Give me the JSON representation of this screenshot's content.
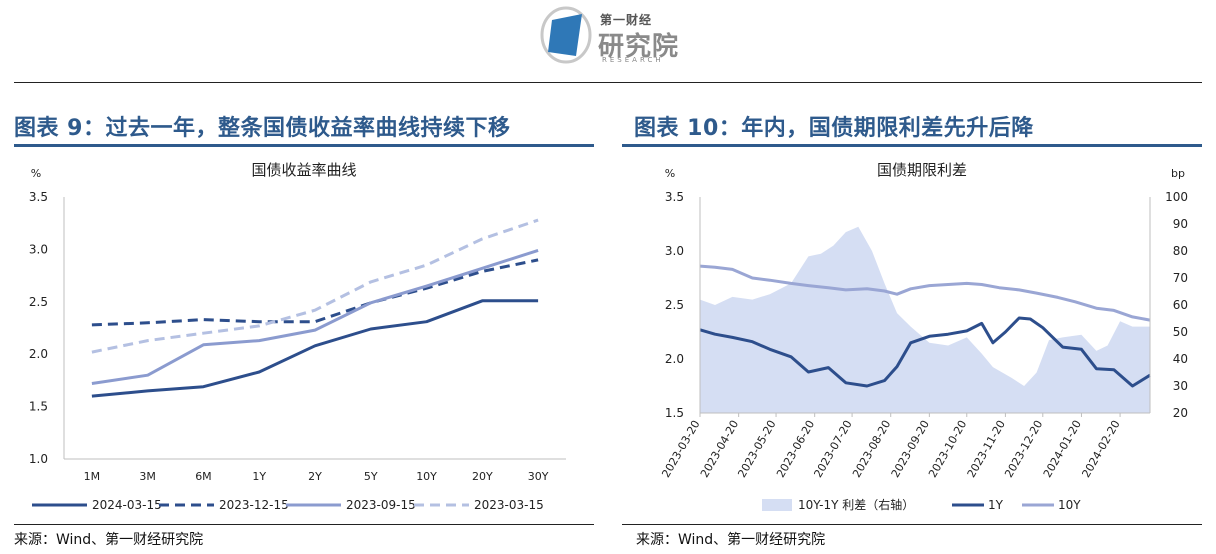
{
  "header": {
    "logo_small": "第一财经",
    "logo_big": "研究院",
    "logo_sub": "RESEARCH"
  },
  "figures": [
    {
      "title": "图表 9：过去一年，整条国债收益率曲线持续下移",
      "source": "来源：Wind、第一财经研究院"
    },
    {
      "title": "图表 10：年内，国债期限利差先升后降",
      "source": "来源：Wind、第一财经研究院"
    }
  ],
  "colors": {
    "accent": "#2e5a8c",
    "s1": "#2d4e8c",
    "s2": "#2d4e8c",
    "s3": "#8b9bcf",
    "s4": "#b4c0e2",
    "area": "#d5def3",
    "y10": "#9aa6d4"
  },
  "chart_data": [
    {
      "type": "line",
      "title": "国债收益率曲线",
      "ylabel": "%",
      "ylim": [
        1.0,
        3.5
      ],
      "yticks": [
        "1.0",
        "1.5",
        "2.0",
        "2.5",
        "3.0",
        "3.5"
      ],
      "categories": [
        "1M",
        "3M",
        "6M",
        "1Y",
        "2Y",
        "5Y",
        "10Y",
        "20Y",
        "30Y"
      ],
      "series": [
        {
          "name": "2024-03-15",
          "style": "solid",
          "values": [
            1.6,
            1.65,
            1.69,
            1.83,
            2.08,
            2.24,
            2.31,
            2.51,
            2.51
          ]
        },
        {
          "name": "2023-12-15",
          "style": "dashed",
          "values": [
            2.28,
            2.3,
            2.33,
            2.31,
            2.31,
            2.49,
            2.63,
            2.79,
            2.9
          ]
        },
        {
          "name": "2023-09-15",
          "style": "solid",
          "values": [
            1.72,
            1.8,
            2.09,
            2.13,
            2.23,
            2.49,
            2.65,
            2.82,
            2.99
          ]
        },
        {
          "name": "2023-03-15",
          "style": "dashed",
          "values": [
            2.02,
            2.13,
            2.2,
            2.27,
            2.42,
            2.69,
            2.85,
            3.1,
            3.28
          ]
        }
      ],
      "grid": false,
      "legend": "bottom"
    },
    {
      "type": "line",
      "title": "国债期限利差",
      "ylabel": "%",
      "ylabel_right": "bp",
      "ylim": [
        1.5,
        3.5
      ],
      "yticks": [
        "1.5",
        "2.0",
        "2.5",
        "3.0",
        "3.5"
      ],
      "ylim_right": [
        20,
        100
      ],
      "yticks_right": [
        "20",
        "30",
        "40",
        "50",
        "60",
        "70",
        "80",
        "90",
        "100"
      ],
      "x_start": "2023-03-20",
      "x_end": "2024-03-15",
      "x_ticks": [
        "2023-03-20",
        "2023-04-20",
        "2023-05-20",
        "2023-06-20",
        "2023-07-20",
        "2023-08-20",
        "2023-09-20",
        "2023-10-20",
        "2023-11-20",
        "2023-12-20",
        "2024-01-20",
        "2024-02-20"
      ],
      "series": [
        {
          "name": "10Y-1Y 利差（右轴）",
          "type": "area",
          "axis": "right",
          "x": [
            "2023-03-20",
            "2023-04-01",
            "2023-04-15",
            "2023-05-01",
            "2023-05-15",
            "2023-06-01",
            "2023-06-15",
            "2023-06-25",
            "2023-07-05",
            "2023-07-15",
            "2023-07-25",
            "2023-08-05",
            "2023-08-15",
            "2023-08-25",
            "2023-09-05",
            "2023-09-20",
            "2023-10-05",
            "2023-10-20",
            "2023-11-01",
            "2023-11-10",
            "2023-11-25",
            "2023-12-05",
            "2023-12-15",
            "2023-12-25",
            "2024-01-05",
            "2024-01-20",
            "2024-02-01",
            "2024-02-10",
            "2024-02-20",
            "2024-03-01",
            "2024-03-15"
          ],
          "values": [
            62,
            60,
            63,
            62,
            64,
            68,
            78,
            79,
            82,
            87,
            89,
            80,
            68,
            57,
            52,
            46,
            45,
            48,
            42,
            37,
            33,
            30,
            35,
            47,
            48,
            49,
            43,
            45,
            54,
            52,
            52
          ]
        },
        {
          "name": "1Y",
          "type": "line",
          "axis": "left",
          "x": [
            "2023-03-20",
            "2023-04-01",
            "2023-04-15",
            "2023-05-01",
            "2023-05-15",
            "2023-06-01",
            "2023-06-15",
            "2023-07-01",
            "2023-07-15",
            "2023-08-01",
            "2023-08-15",
            "2023-08-25",
            "2023-09-05",
            "2023-09-20",
            "2023-10-05",
            "2023-10-20",
            "2023-11-01",
            "2023-11-10",
            "2023-11-20",
            "2023-12-01",
            "2023-12-10",
            "2023-12-20",
            "2024-01-05",
            "2024-01-20",
            "2024-02-01",
            "2024-02-15",
            "2024-03-01",
            "2024-03-15"
          ],
          "values": [
            2.27,
            2.23,
            2.2,
            2.16,
            2.09,
            2.02,
            1.88,
            1.92,
            1.78,
            1.75,
            1.8,
            1.93,
            2.15,
            2.21,
            2.23,
            2.26,
            2.33,
            2.15,
            2.25,
            2.38,
            2.37,
            2.29,
            2.11,
            2.09,
            1.91,
            1.9,
            1.75,
            1.85
          ]
        },
        {
          "name": "10Y",
          "type": "line",
          "axis": "left",
          "x": [
            "2023-03-20",
            "2023-04-01",
            "2023-04-15",
            "2023-05-01",
            "2023-05-15",
            "2023-06-01",
            "2023-06-15",
            "2023-07-01",
            "2023-07-15",
            "2023-08-01",
            "2023-08-15",
            "2023-08-25",
            "2023-09-05",
            "2023-09-20",
            "2023-10-05",
            "2023-10-20",
            "2023-11-01",
            "2023-11-15",
            "2023-12-01",
            "2023-12-15",
            "2024-01-01",
            "2024-01-15",
            "2024-02-01",
            "2024-02-15",
            "2024-03-01",
            "2024-03-15"
          ],
          "values": [
            2.86,
            2.85,
            2.83,
            2.75,
            2.73,
            2.7,
            2.68,
            2.66,
            2.64,
            2.65,
            2.63,
            2.6,
            2.65,
            2.68,
            2.69,
            2.7,
            2.69,
            2.66,
            2.64,
            2.61,
            2.57,
            2.53,
            2.47,
            2.45,
            2.39,
            2.36
          ]
        }
      ],
      "grid": false,
      "legend": "bottom"
    }
  ]
}
